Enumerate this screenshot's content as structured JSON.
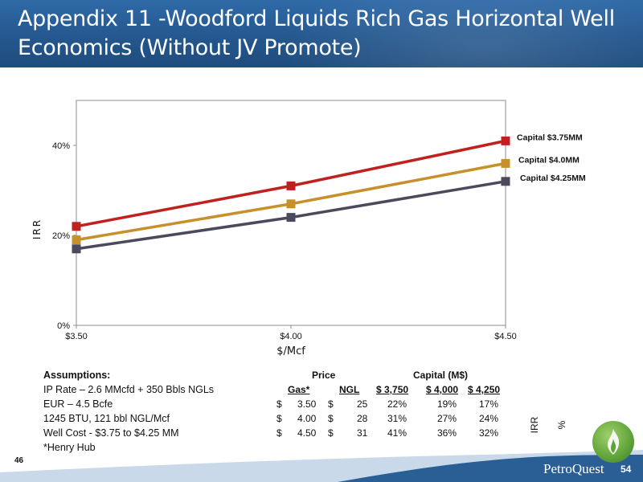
{
  "title": "Appendix 11 -Woodford Liquids Rich Gas Horizontal Well Economics (Without JV Promote)",
  "colors": {
    "banner": "#24578e",
    "series_red": "#c0211f",
    "series_gold": "#c8902a",
    "series_gray": "#4a4a5c",
    "footer": "#2a5f96",
    "logo_green": "#5fa33a"
  },
  "chart_data": {
    "type": "line",
    "x": [
      "$3.50",
      "$4.00",
      "$4.50"
    ],
    "xlabel": "$/Mcf",
    "ylabel": "IRR",
    "ylim": [
      0,
      0.5
    ],
    "yticks": [
      "0%",
      "20%",
      "40%"
    ],
    "grid": false,
    "legend": "labels at line ends",
    "series": [
      {
        "name": "Capital $3.75MM",
        "values": [
          0.22,
          0.31,
          0.41
        ],
        "color": "#c0211f"
      },
      {
        "name": "Capital $4.0MM",
        "values": [
          0.19,
          0.27,
          0.36
        ],
        "color": "#c8902a"
      },
      {
        "name": "Capital $4.25MM",
        "values": [
          0.17,
          0.24,
          0.32
        ],
        "color": "#4a4a5c"
      }
    ]
  },
  "assumptions": {
    "header": "Assumptions:",
    "lines": [
      "IP Rate – 2.6 MMcfd + 350 Bbls NGLs",
      "EUR – 4.5 Bcfe",
      "1245 BTU, 121 bbl NGL/Mcf",
      "Well Cost - $3.75 to $4.25 MM",
      "*Henry Hub"
    ]
  },
  "table": {
    "price_header": "Price",
    "capital_header": "Capital (M$)",
    "col_gas": "Gas*",
    "col_ngl": "NGL",
    "col_c1": "$ 3,750",
    "col_c2": "$ 4,000",
    "col_c3": "$ 4,250",
    "irr_label": "IRR %",
    "rows": [
      {
        "d1": "$",
        "gas": "3.50",
        "d2": "$",
        "ngl": "25",
        "c1": "22%",
        "c2": "19%",
        "c3": "17%"
      },
      {
        "d1": "$",
        "gas": "4.00",
        "d2": "$",
        "ngl": "28",
        "c1": "31%",
        "c2": "27%",
        "c3": "24%"
      },
      {
        "d1": "$",
        "gas": "4.50",
        "d2": "$",
        "ngl": "31",
        "c1": "41%",
        "c2": "36%",
        "c3": "32%"
      }
    ]
  },
  "footer": {
    "logo_text": "PetroQuest",
    "page_number": "54",
    "slide_number": "46"
  }
}
